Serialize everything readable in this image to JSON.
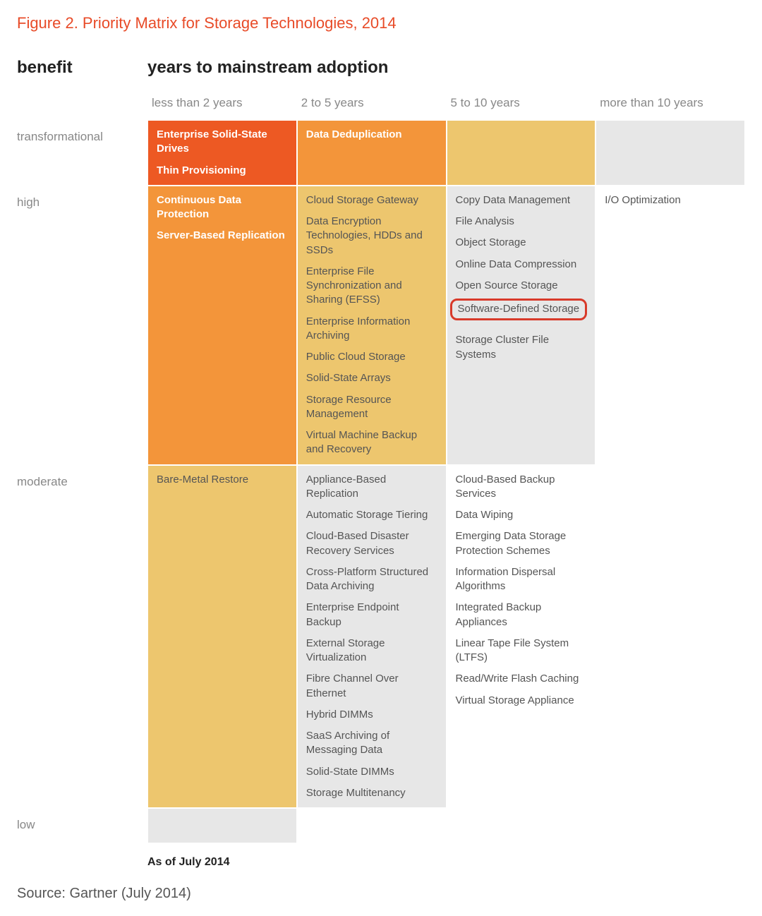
{
  "title": "Figure 2. Priority Matrix for Storage Technologies, 2014",
  "axis_y": "benefit",
  "axis_x": "years to mainstream adoption",
  "col_headers": [
    "less than 2 years",
    "2 to 5 years",
    "5 to 10 years",
    "more than 10 years"
  ],
  "row_headers": [
    "transformational",
    "high",
    "moderate",
    "low"
  ],
  "asof": "As of July 2014",
  "source": "Source: Gartner (July 2014)",
  "colors": {
    "title": "#e84b28",
    "header_text": "#888888",
    "highlight_border": "#d83a2a",
    "orange_red": "#ed5923",
    "orange": "#f3953a",
    "pale_orange": "#edc66e",
    "light_grey": "#e7e7e7",
    "white_text": "#ffffff",
    "dark_text": "#555555"
  },
  "cells": [
    [
      {
        "bg": "#ed5923",
        "fg": "#ffffff",
        "bold": true,
        "items": [
          "Enterprise Solid-State Drives",
          "Thin Provisioning"
        ]
      },
      {
        "bg": "#f3953a",
        "fg": "#ffffff",
        "bold": true,
        "items": [
          "Data Deduplication"
        ]
      },
      {
        "bg": "#edc66e",
        "fg": "#555555",
        "bold": false,
        "items": []
      },
      {
        "bg": "#e7e7e7",
        "fg": "#555555",
        "bold": false,
        "items": []
      }
    ],
    [
      {
        "bg": "#f3953a",
        "fg": "#ffffff",
        "bold": true,
        "items": [
          "Continuous Data Protection",
          "Server-Based Replication"
        ]
      },
      {
        "bg": "#edc66e",
        "fg": "#555555",
        "bold": false,
        "items": [
          "Cloud Storage Gateway",
          "Data Encryption Technologies, HDDs and SSDs",
          "Enterprise File Synchronization and Sharing (EFSS)",
          "Enterprise Information Archiving",
          "Public Cloud Storage",
          "Solid-State Arrays",
          "Storage Resource Management",
          "Virtual Machine Backup and Recovery"
        ]
      },
      {
        "bg": "#e7e7e7",
        "fg": "#555555",
        "bold": false,
        "items": [
          "Copy Data Management",
          "File Analysis",
          "Object Storage",
          "Online Data Compression",
          "Open Source Storage",
          "Software-Defined Storage",
          "Storage Cluster File Systems"
        ],
        "highlight": [
          "Software-Defined Storage"
        ]
      },
      {
        "bg": "#ffffff",
        "fg": "#555555",
        "bold": false,
        "items": [
          "I/O Optimization"
        ]
      }
    ],
    [
      {
        "bg": "#edc66e",
        "fg": "#555555",
        "bold": false,
        "items": [
          "Bare-Metal Restore"
        ]
      },
      {
        "bg": "#e7e7e7",
        "fg": "#555555",
        "bold": false,
        "items": [
          "Appliance-Based Replication",
          "Automatic Storage Tiering",
          "Cloud-Based Disaster Recovery Services",
          "Cross-Platform Structured Data Archiving",
          "Enterprise Endpoint Backup",
          "External Storage Virtualization",
          "Fibre Channel Over Ethernet",
          "Hybrid DIMMs",
          "SaaS Archiving of Messaging Data",
          "Solid-State DIMMs",
          "Storage Multitenancy"
        ]
      },
      {
        "bg": "#ffffff",
        "fg": "#555555",
        "bold": false,
        "items": [
          "Cloud-Based Backup Services",
          "Data Wiping",
          "Emerging Data Storage Protection Schemes",
          "Information Dispersal Algorithms",
          "Integrated Backup Appliances",
          "Linear Tape File System (LTFS)",
          "Read/Write Flash Caching",
          "Virtual Storage Appliance"
        ]
      },
      {
        "bg": "#ffffff",
        "fg": "#555555",
        "bold": false,
        "items": []
      }
    ],
    [
      {
        "bg": "#e7e7e7",
        "fg": "#555555",
        "bold": false,
        "items": []
      },
      {
        "bg": "#ffffff",
        "fg": "#555555",
        "bold": false,
        "items": []
      },
      {
        "bg": "#ffffff",
        "fg": "#555555",
        "bold": false,
        "items": []
      },
      {
        "bg": "#ffffff",
        "fg": "#555555",
        "bold": false,
        "items": []
      }
    ]
  ]
}
